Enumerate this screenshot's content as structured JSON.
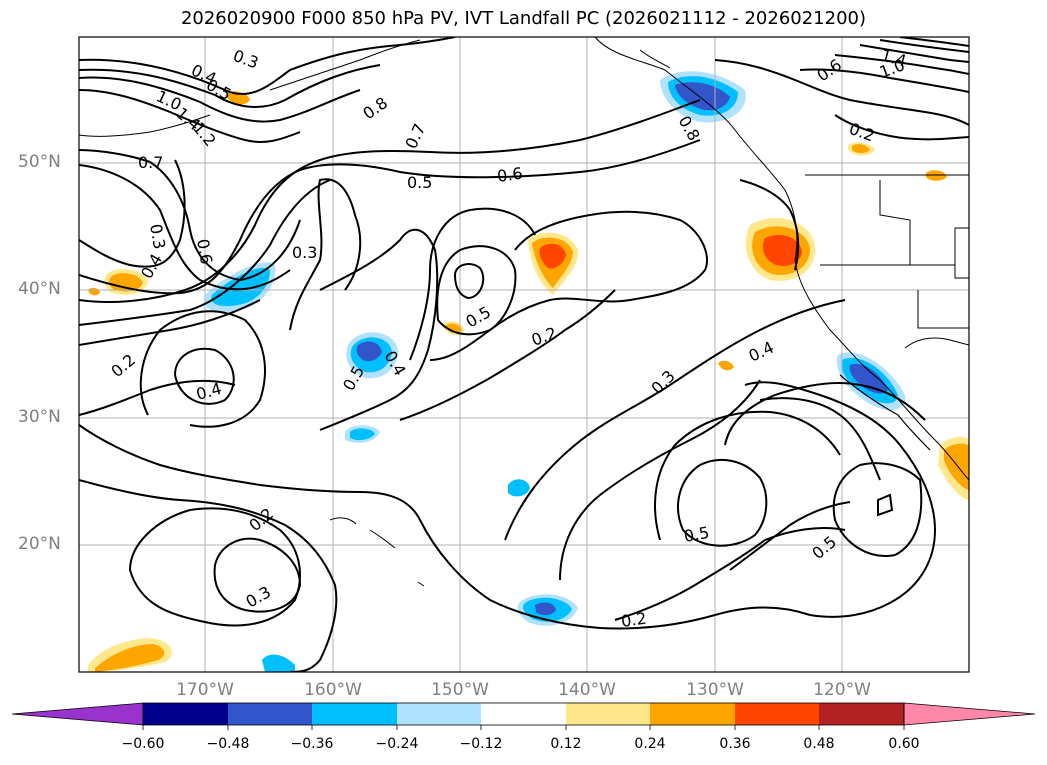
{
  "title": "2026020900 F000 850 hPa PV, IVT Landfall PC (2026021112 - 2026021200)",
  "axes": {
    "lat_labels": [
      "50°N",
      "40°N",
      "30°N",
      "20°N"
    ],
    "lon_labels": [
      "170°W",
      "160°W",
      "150°W",
      "140°W",
      "130°W",
      "120°W"
    ]
  },
  "contour_labels": [
    "0.3",
    "0.4",
    "0.5",
    "1.0",
    "1.2",
    "1.4",
    "0.7",
    "0.8",
    "0.7",
    "0.6",
    "0.5",
    "0.3",
    "0.6",
    "0.4",
    "0.3",
    "0.4",
    "0.2",
    "0.5",
    "0.4",
    "0.5",
    "0.2",
    "0.2",
    "0.3",
    "0.3",
    "0.4",
    "0.5",
    "0.5",
    "0.2",
    "1.0",
    "1.4",
    "0.2",
    "0.8",
    "0.6"
  ],
  "colorbar": {
    "ticks": [
      "−0.60",
      "−0.48",
      "−0.36",
      "−0.24",
      "−0.12",
      "0.12",
      "0.24",
      "0.36",
      "0.48",
      "0.60"
    ],
    "colors": [
      "#9933cc",
      "#00008b",
      "#3355cc",
      "#00bfff",
      "#b0e2ff",
      "#ffffff",
      "#ffe88c",
      "#ffa500",
      "#ff4500",
      "#b22222",
      "#ff88aa"
    ]
  },
  "colors": {
    "pos1": "#ffe88c",
    "pos2": "#ffa500",
    "pos3": "#ff4500",
    "neg1": "#b0e2ff",
    "neg2": "#00bfff",
    "neg3": "#3355cc",
    "grid": "#b0b0b0"
  }
}
